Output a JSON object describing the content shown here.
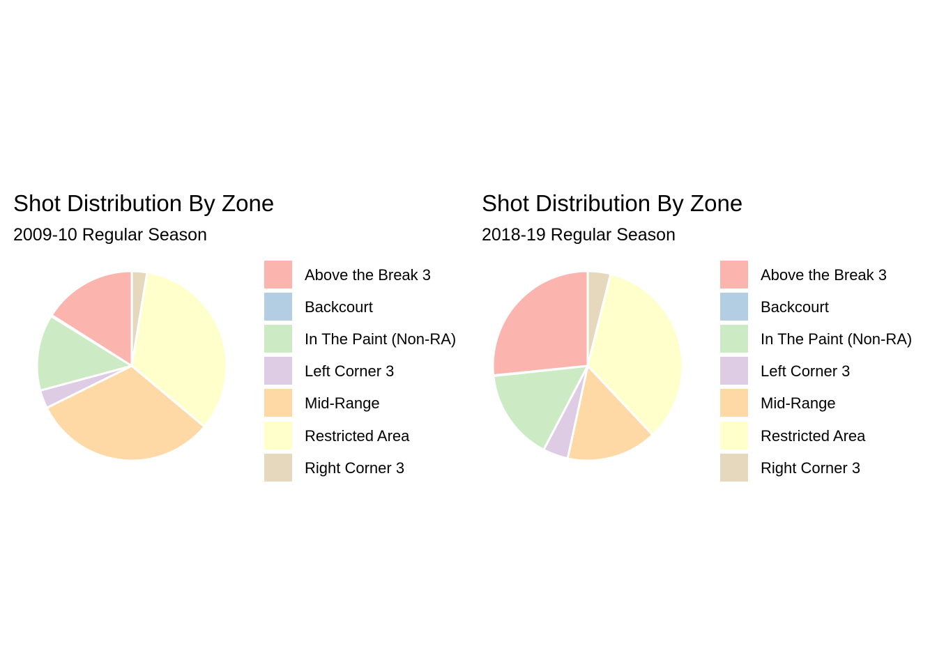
{
  "chart_data": [
    {
      "type": "pie",
      "title": "Shot Distribution By Zone",
      "subtitle": "2009-10 Regular Season",
      "legend_position": "right",
      "series": [
        {
          "name": "Right Corner 3",
          "value": 2.6,
          "color": "#E5D8BD"
        },
        {
          "name": "Restricted Area",
          "value": 33.5,
          "color": "#FFFFCC"
        },
        {
          "name": "Mid-Range",
          "value": 31.6,
          "color": "#FED9A6"
        },
        {
          "name": "Left Corner 3",
          "value": 3.1,
          "color": "#DECBE4"
        },
        {
          "name": "In The Paint (Non-RA)",
          "value": 13.0,
          "color": "#CCEBC5"
        },
        {
          "name": "Backcourt",
          "value": 0.2,
          "color": "#B3CDE3"
        },
        {
          "name": "Above the Break 3",
          "value": 16.0,
          "color": "#FBB4AE"
        }
      ]
    },
    {
      "type": "pie",
      "title": "Shot Distribution By Zone",
      "subtitle": "2018-19 Regular Season",
      "legend_position": "right",
      "series": [
        {
          "name": "Right Corner 3",
          "value": 3.9,
          "color": "#E5D8BD"
        },
        {
          "name": "Restricted Area",
          "value": 34.1,
          "color": "#FFFFCC"
        },
        {
          "name": "Mid-Range",
          "value": 15.4,
          "color": "#FED9A6"
        },
        {
          "name": "Left Corner 3",
          "value": 4.3,
          "color": "#DECBE4"
        },
        {
          "name": "In The Paint (Non-RA)",
          "value": 15.6,
          "color": "#CCEBC5"
        },
        {
          "name": "Backcourt",
          "value": 0.1,
          "color": "#B3CDE3"
        },
        {
          "name": "Above the Break 3",
          "value": 26.6,
          "color": "#FBB4AE"
        }
      ]
    }
  ],
  "legend": {
    "items": [
      {
        "label": "Above the Break 3",
        "color": "#FBB4AE"
      },
      {
        "label": "Backcourt",
        "color": "#B3CDE3"
      },
      {
        "label": "In The Paint (Non-RA)",
        "color": "#CCEBC5"
      },
      {
        "label": "Left Corner 3",
        "color": "#DECBE4"
      },
      {
        "label": "Mid-Range",
        "color": "#FED9A6"
      },
      {
        "label": "Restricted Area",
        "color": "#FFFFCC"
      },
      {
        "label": "Right Corner 3",
        "color": "#E5D8BD"
      }
    ]
  }
}
